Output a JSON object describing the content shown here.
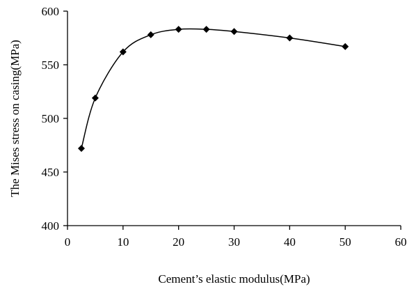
{
  "chart_data": {
    "type": "line",
    "title": "",
    "xlabel": "Cement’s elastic modulus(MPa)",
    "ylabel": "The Mises stress on casing(MPa)",
    "xlim": [
      0,
      60
    ],
    "ylim": [
      400,
      600
    ],
    "xticks": [
      "0",
      "10",
      "20",
      "30",
      "40",
      "50",
      "60"
    ],
    "yticks": [
      "400",
      "450",
      "500",
      "550",
      "600"
    ],
    "grid": false,
    "legend": "none",
    "smooth": true,
    "marker": "diamond",
    "color": "#000000",
    "series": [
      {
        "x": [
          2.5,
          5,
          10,
          15,
          20,
          25,
          30,
          40,
          50
        ],
        "y": [
          472,
          519,
          562,
          578,
          583,
          583,
          581,
          575,
          567
        ]
      }
    ]
  }
}
